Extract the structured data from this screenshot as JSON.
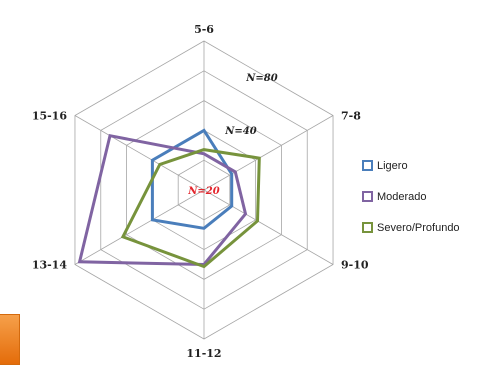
{
  "chart_data": {
    "type": "radar",
    "categories": [
      "5-6",
      "7-8",
      "9-10",
      "11-12",
      "13-14",
      "15-16"
    ],
    "scale_labels": [
      "N=20",
      "N=40",
      "N=80"
    ],
    "scale_label_colors": [
      "#e3242b",
      "#222222",
      "#222222"
    ],
    "series": [
      {
        "name": "Ligero",
        "color": "#4a7ebb",
        "values": [
          56,
          30,
          30,
          36,
          56,
          56
        ]
      },
      {
        "name": "Moderado",
        "color": "#8064a2",
        "values": [
          34,
          34,
          45,
          70,
          135,
          102
        ]
      },
      {
        "name": "Severo/Profundo",
        "color": "#77933c",
        "values": [
          38,
          60,
          58,
          72,
          88,
          48
        ]
      }
    ]
  }
}
